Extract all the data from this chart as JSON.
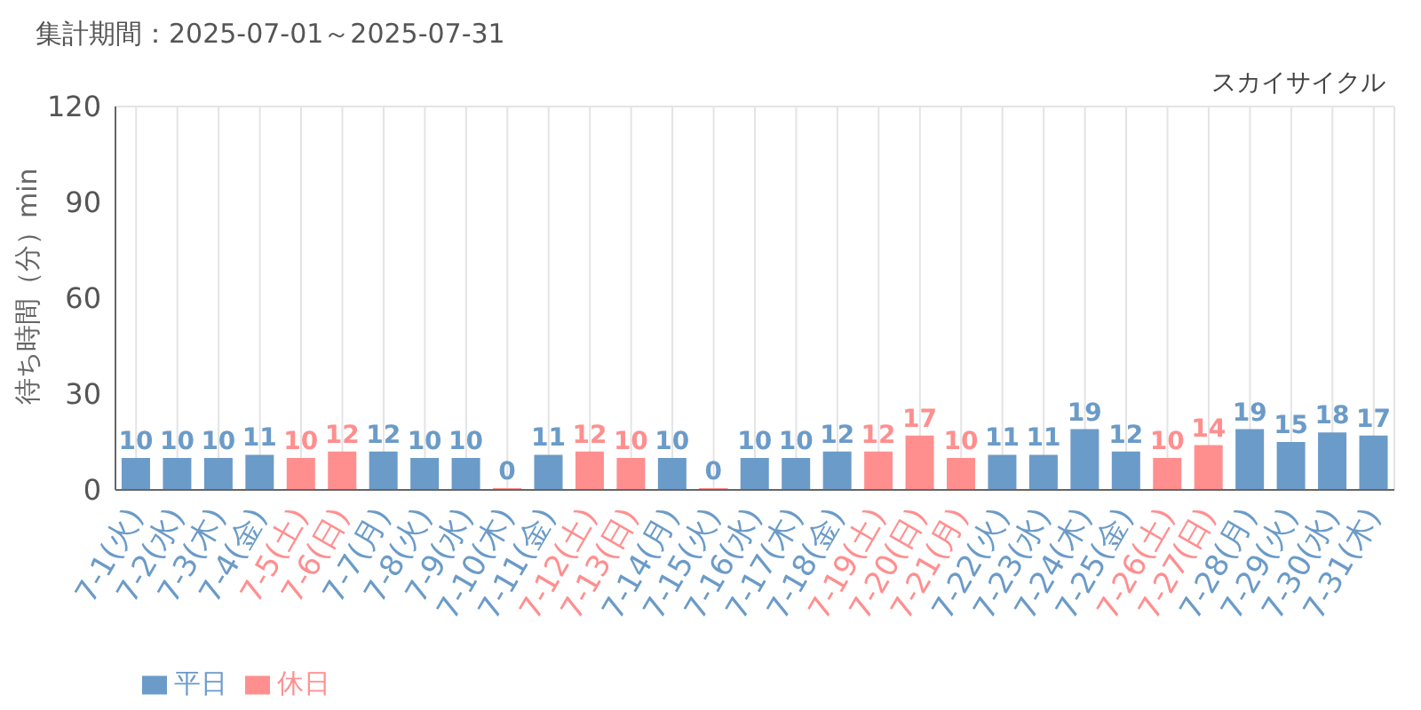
{
  "chart_data": {
    "type": "bar",
    "title": "集計期間：2025-07-01～2025-07-31",
    "subtitle": "スカイサイクル",
    "ylabel": "待ち時間（分）min",
    "categories": [
      "7-1(火)",
      "7-2(水)",
      "7-3(木)",
      "7-4(金)",
      "7-5(土)",
      "7-6(日)",
      "7-7(月)",
      "7-8(火)",
      "7-9(水)",
      "7-10(木)",
      "7-11(金)",
      "7-12(土)",
      "7-13(日)",
      "7-14(月)",
      "7-15(火)",
      "7-16(水)",
      "7-17(木)",
      "7-18(金)",
      "7-19(土)",
      "7-20(日)",
      "7-21(月)",
      "7-22(火)",
      "7-23(水)",
      "7-24(木)",
      "7-25(金)",
      "7-26(土)",
      "7-27(日)",
      "7-28(月)",
      "7-29(火)",
      "7-30(水)",
      "7-31(木)"
    ],
    "series": [
      {
        "name": "平日",
        "color": "#6b9bc8",
        "values": [
          10,
          10,
          10,
          11,
          null,
          null,
          12,
          10,
          10,
          0,
          11,
          null,
          null,
          10,
          0,
          10,
          10,
          12,
          null,
          null,
          null,
          11,
          11,
          19,
          12,
          null,
          null,
          19,
          15,
          18,
          17
        ]
      },
      {
        "name": "休日",
        "color": "#ff8f8f",
        "values": [
          null,
          null,
          null,
          null,
          10,
          12,
          null,
          null,
          null,
          null,
          null,
          12,
          10,
          null,
          null,
          null,
          null,
          null,
          12,
          17,
          10,
          null,
          null,
          null,
          null,
          10,
          14,
          null,
          null,
          null,
          null
        ]
      }
    ],
    "stacked": true,
    "ylim": [
      0,
      120
    ],
    "yticks": [
      0,
      30,
      60,
      90,
      120
    ],
    "grid": true,
    "data_labels": true,
    "legend": "bottom left"
  }
}
